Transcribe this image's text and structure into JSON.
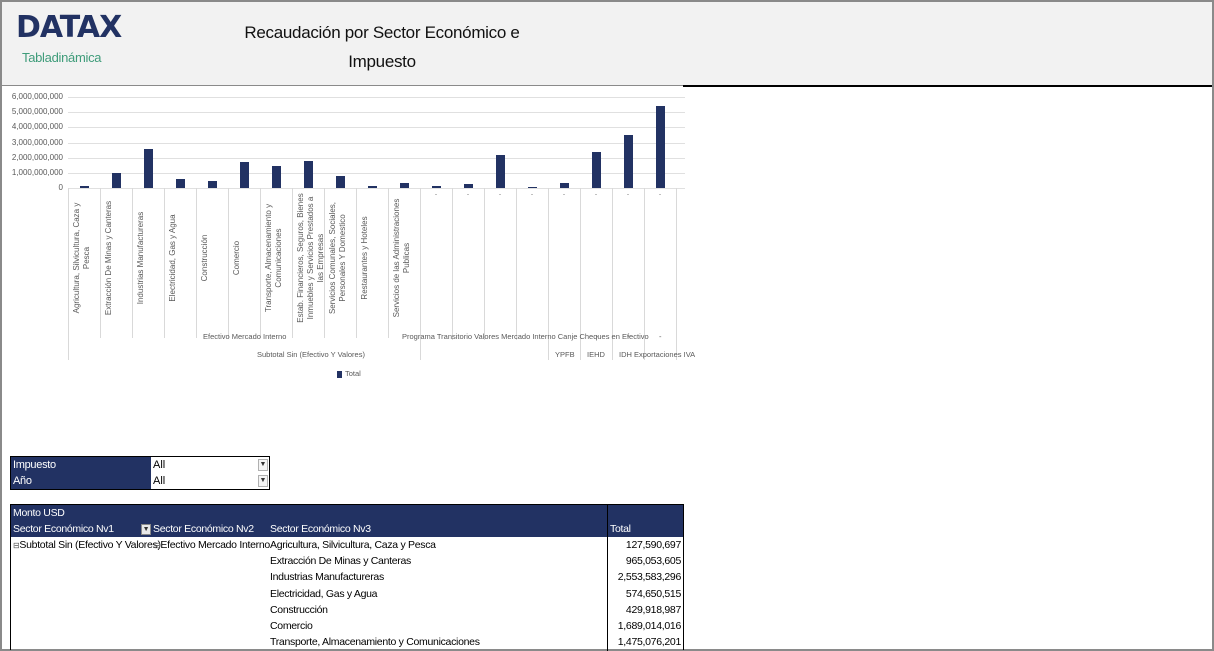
{
  "header": {
    "logo": "DATAX",
    "subtitle": "Tabladinámica",
    "title_line1": "Recaudación por Sector Económico e",
    "title_line2": "Impuesto"
  },
  "chart_data": {
    "type": "bar",
    "title": "",
    "xlabel": "",
    "ylabel": "",
    "ylim": [
      0,
      6000000000
    ],
    "yticks": [
      "6,000,000,000",
      "5,000,000,000",
      "4,000,000,000",
      "3,000,000,000",
      "2,000,000,000",
      "1,000,000,000",
      "0"
    ],
    "grid": true,
    "legend": {
      "position": "bottom",
      "entries": [
        "Total"
      ]
    },
    "categories": [
      "Agricultura, Silvicultura, Caza y Pesca",
      "Extracción De Minas y Canteras",
      "Industrias Manufactureras",
      "Electricidad, Gas y Agua",
      "Construcción",
      "Comercio",
      "Transporte, Almacenamiento y Comunicaciones",
      "Estab. Financieros, Seguros, Bienes Inmuebles y Servicios Prestados a las Empresas",
      "Servicios Comunales, Sociales, Personales Y Domestico",
      "Restaurantes y Hoteles",
      "Servicios de las Administraciones Publicas",
      "-",
      "-",
      "-",
      "-",
      "-",
      "-",
      "-",
      "-"
    ],
    "level2_labels": [
      "Efectivo Mercado Interno",
      "Programa Transitorio",
      "Valores",
      "Mercado Interno",
      "Canje",
      "Cheques en Efectivo",
      "-",
      "-",
      "-"
    ],
    "level3_labels": [
      "Subtotal Sin (Efectivo Y Valores)",
      "YPFB",
      "IEHD",
      "IDH",
      "Exportaciones",
      "IVA"
    ],
    "series": [
      {
        "name": "Total",
        "values": [
          127590697,
          965053605,
          2553583296,
          574650515,
          429918987,
          1689014016,
          1475076201,
          1780000000,
          770000000,
          110000000,
          310000000,
          110000000,
          240000000,
          2150000000,
          20000000,
          310000000,
          2370000000,
          3470000000,
          5430000000
        ]
      }
    ]
  },
  "filters": [
    {
      "label": "Impuesto",
      "value": "All"
    },
    {
      "label": "Año",
      "value": "All"
    }
  ],
  "pivot": {
    "measure": "Monto USD",
    "headers": [
      "Sector Económico Nv1",
      "Sector Económico Nv2",
      "Sector Económico Nv3",
      "Total"
    ],
    "nv1": "Subtotal Sin (Efectivo Y Valores)",
    "nv2": "Efectivo Mercado Interno",
    "rows": [
      {
        "nv3": "Agricultura, Silvicultura, Caza y Pesca",
        "total": "127,590,697"
      },
      {
        "nv3": "Extracción De Minas y Canteras",
        "total": "965,053,605"
      },
      {
        "nv3": "Industrias Manufactureras",
        "total": "2,553,583,296"
      },
      {
        "nv3": "Electricidad, Gas y Agua",
        "total": "574,650,515"
      },
      {
        "nv3": "Construcción",
        "total": "429,918,987"
      },
      {
        "nv3": "Comercio",
        "total": "1,689,014,016"
      },
      {
        "nv3": "Transporte, Almacenamiento y Comunicaciones",
        "total": "1,475,076,201"
      }
    ]
  },
  "icons": {
    "expand": "⊟",
    "dropdown": "▼"
  },
  "colors": {
    "accent": "#223263",
    "subtitle": "#3f9c7a",
    "header_bg": "#f2f2f2"
  }
}
